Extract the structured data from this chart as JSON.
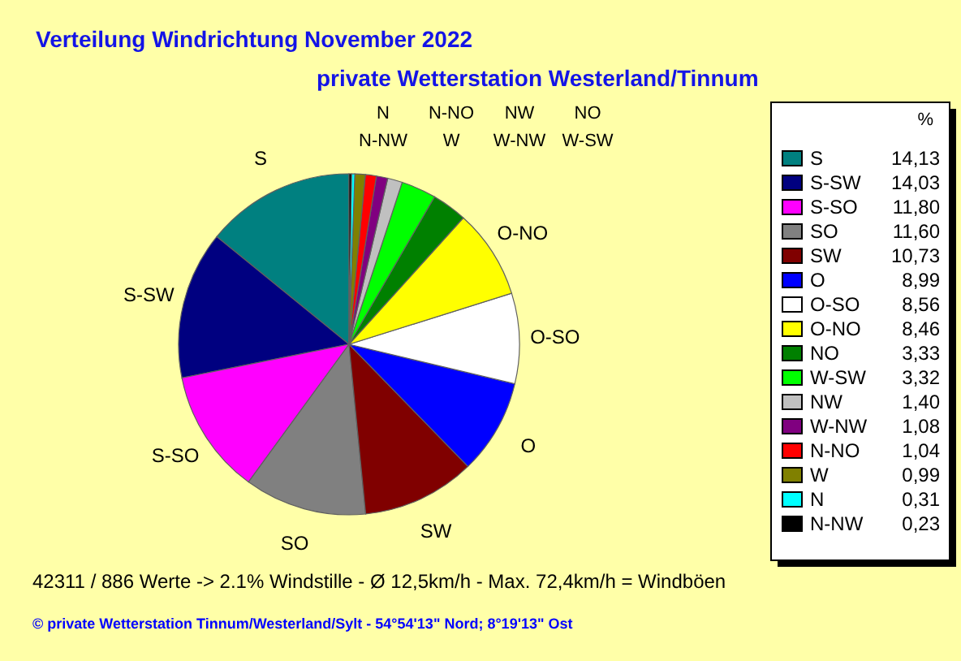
{
  "chart_data": {
    "type": "pie",
    "title": "Verteilung Windrichtung   November 2022",
    "subtitle": "private Wetterstation Westerland/Tinnum",
    "categories": [
      "S",
      "S-SW",
      "S-SO",
      "SO",
      "SW",
      "O",
      "O-SO",
      "O-NO",
      "NO",
      "W-SW",
      "NW",
      "W-NW",
      "N-NO",
      "W",
      "N",
      "N-NW"
    ],
    "values": [
      14.13,
      14.03,
      11.8,
      11.6,
      10.73,
      8.99,
      8.56,
      8.46,
      3.33,
      3.32,
      1.4,
      1.08,
      1.04,
      0.99,
      0.31,
      0.23
    ],
    "colors": [
      "#008080",
      "#000080",
      "#ff00ff",
      "#808080",
      "#800000",
      "#0000ff",
      "#ffffff",
      "#ffff00",
      "#008000",
      "#00ff00",
      "#c0c0c0",
      "#800080",
      "#ff0000",
      "#808000",
      "#00ffff",
      "#000000"
    ],
    "value_labels": [
      "14,13",
      "14,03",
      "11,80",
      "11,60",
      "10,73",
      "8,99",
      "8,56",
      "8,46",
      "3,33",
      "3,32",
      "1,40",
      "1,08",
      "1,04",
      "0,99",
      "0,31",
      "0,23"
    ],
    "legend": "right",
    "legend_title": "%",
    "annotations": [
      "42311 / 886 Werte  -> 2.1% Windstille   -   Ø 12,5km/h  -  Max. 72,4km/h = Windböen",
      "© private Wetterstation Tinnum/Westerland/Sylt   -   54°54'13\" Nord; 8°19'13\" Ost"
    ]
  }
}
